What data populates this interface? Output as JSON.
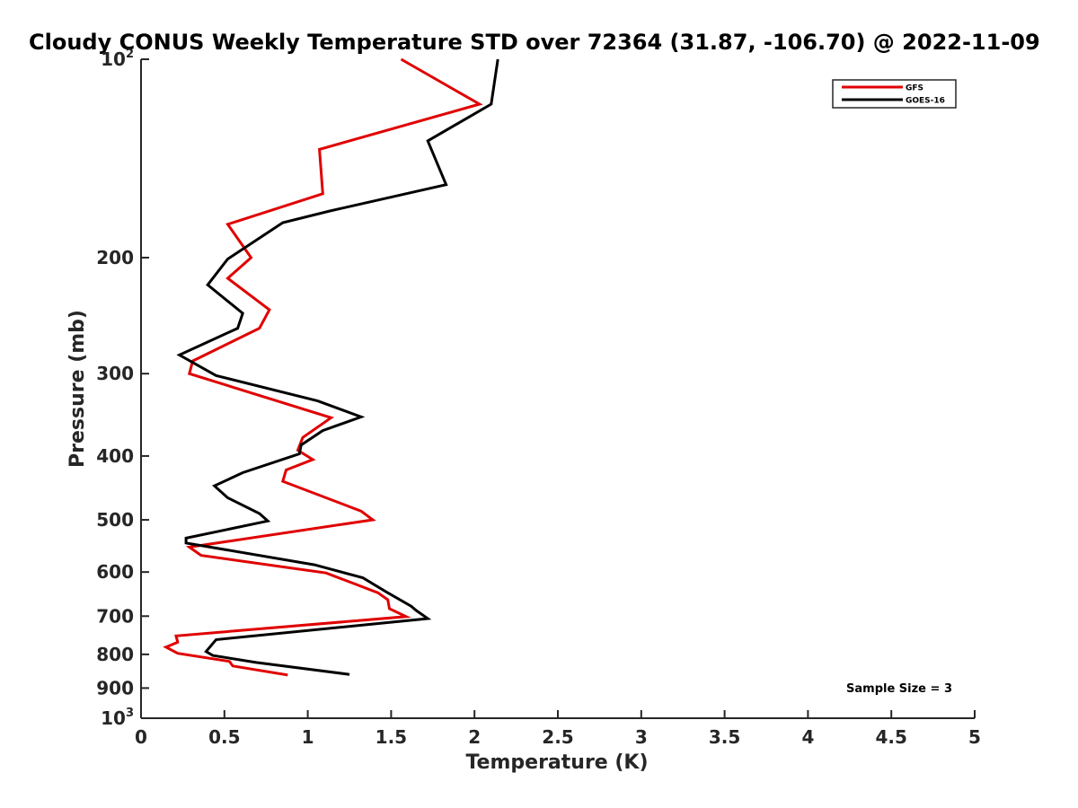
{
  "chart_data": {
    "type": "line",
    "title": "Cloudy CONUS Weekly Temperature STD over 72364 (31.87, -106.70) @ 2022-11-09",
    "xlabel": "Temperature (K)",
    "ylabel": "Pressure (mb)",
    "xlim": [
      0,
      5
    ],
    "ylim": [
      100,
      1000
    ],
    "y_scale": "log",
    "y_reversed": true,
    "x_ticks": [
      {
        "value": 0,
        "label": "0"
      },
      {
        "value": 0.5,
        "label": "0.5"
      },
      {
        "value": 1,
        "label": "1"
      },
      {
        "value": 1.5,
        "label": "1.5"
      },
      {
        "value": 2,
        "label": "2"
      },
      {
        "value": 2.5,
        "label": "2.5"
      },
      {
        "value": 3,
        "label": "3"
      },
      {
        "value": 3.5,
        "label": "3.5"
      },
      {
        "value": 4,
        "label": "4"
      },
      {
        "value": 4.5,
        "label": "4.5"
      },
      {
        "value": 5,
        "label": "5"
      }
    ],
    "y_ticks": [
      {
        "value": 100,
        "label": "10",
        "sup": "2"
      },
      {
        "value": 200,
        "label": "200"
      },
      {
        "value": 300,
        "label": "300"
      },
      {
        "value": 400,
        "label": "400"
      },
      {
        "value": 500,
        "label": "500"
      },
      {
        "value": 600,
        "label": "600"
      },
      {
        "value": 700,
        "label": "700"
      },
      {
        "value": 800,
        "label": "800"
      },
      {
        "value": 900,
        "label": "900"
      },
      {
        "value": 1000,
        "label": "10",
        "sup": "3"
      }
    ],
    "grid": false,
    "legend_position": "top-right",
    "series": [
      {
        "name": "GFS",
        "color": "#e00000",
        "points": [
          [
            1.56,
            100
          ],
          [
            2.03,
            117
          ],
          [
            1.07,
            137
          ],
          [
            1.09,
            160
          ],
          [
            0.52,
            178
          ],
          [
            0.66,
            200
          ],
          [
            0.52,
            215
          ],
          [
            0.77,
            240
          ],
          [
            0.71,
            256
          ],
          [
            0.31,
            287
          ],
          [
            0.29,
            300
          ],
          [
            1.14,
            350
          ],
          [
            0.97,
            375
          ],
          [
            0.94,
            392
          ],
          [
            1.03,
            405
          ],
          [
            0.87,
            420
          ],
          [
            0.85,
            437
          ],
          [
            1.32,
            485
          ],
          [
            1.39,
            500
          ],
          [
            0.29,
            550
          ],
          [
            0.36,
            566
          ],
          [
            1.11,
            602
          ],
          [
            1.42,
            645
          ],
          [
            1.48,
            661
          ],
          [
            1.49,
            682
          ],
          [
            1.59,
            701
          ],
          [
            0.21,
            750
          ],
          [
            0.22,
            767
          ],
          [
            0.15,
            780
          ],
          [
            0.22,
            797
          ],
          [
            0.53,
            820
          ],
          [
            0.55,
            833
          ],
          [
            0.88,
            860
          ]
        ]
      },
      {
        "name": "GOES-16",
        "color": "#000000",
        "points": [
          [
            2.14,
            100
          ],
          [
            2.1,
            117
          ],
          [
            1.72,
            133
          ],
          [
            1.83,
            155
          ],
          [
            1.13,
            170
          ],
          [
            0.85,
            177
          ],
          [
            0.52,
            201
          ],
          [
            0.4,
            220
          ],
          [
            0.61,
            243
          ],
          [
            0.58,
            256
          ],
          [
            0.23,
            281
          ],
          [
            0.45,
            302
          ],
          [
            1.06,
            330
          ],
          [
            1.32,
            349
          ],
          [
            1.09,
            366
          ],
          [
            0.96,
            385
          ],
          [
            0.95,
            397
          ],
          [
            0.61,
            424
          ],
          [
            0.44,
            444
          ],
          [
            0.52,
            463
          ],
          [
            0.71,
            489
          ],
          [
            0.76,
            502
          ],
          [
            0.27,
            533
          ],
          [
            0.27,
            542
          ],
          [
            1.04,
            585
          ],
          [
            1.33,
            612
          ],
          [
            1.47,
            643
          ],
          [
            1.62,
            676
          ],
          [
            1.65,
            686
          ],
          [
            1.72,
            706
          ],
          [
            0.45,
            760
          ],
          [
            0.39,
            792
          ],
          [
            0.43,
            803
          ],
          [
            0.69,
            823
          ],
          [
            1.25,
            858
          ]
        ]
      }
    ],
    "annotations": [
      {
        "text": "Sample Size = 3"
      }
    ]
  }
}
